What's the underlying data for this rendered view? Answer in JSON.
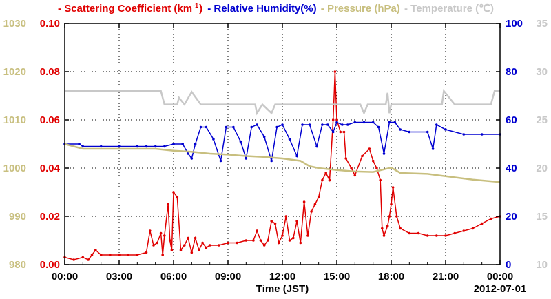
{
  "legend": {
    "scattering": {
      "prefix": "- Scattering Coefficient (km",
      "sup": "-1",
      "suffix": ")",
      "color": "#e00000"
    },
    "humidity": {
      "text": "- Relative Humidity(%)",
      "color": "#0000d0"
    },
    "pressure": {
      "text": "- Pressure (hPa)",
      "color": "#c8bf7f"
    },
    "temperature": {
      "text": "- Temperature (℃)",
      "color": "#c8c8c8"
    }
  },
  "footer": {
    "xlabel": "Time (JST)",
    "date": "2012-07-01"
  },
  "chart_data": {
    "type": "line",
    "xlabel": "Time (JST)",
    "x_ticks": [
      "00:00",
      "03:00",
      "06:00",
      "09:00",
      "12:00",
      "15:00",
      "18:00",
      "21:00",
      "00:00"
    ],
    "x_range_hours": [
      0,
      24
    ],
    "axes": {
      "pressure": {
        "side": "left-outer",
        "range": [
          980,
          1030
        ],
        "ticks": [
          "980",
          "990",
          "1000",
          "1010",
          "1020",
          "1030"
        ],
        "color": "#c8bf7f"
      },
      "scattering": {
        "side": "left-inner",
        "range": [
          0,
          0.1
        ],
        "ticks": [
          "0.00",
          "0.02",
          "0.04",
          "0.06",
          "0.08",
          "0.10"
        ],
        "color": "#e00000"
      },
      "humidity": {
        "side": "right-inner",
        "range": [
          0,
          100
        ],
        "ticks": [
          "0",
          "20",
          "40",
          "60",
          "80",
          "100"
        ],
        "color": "#0000d0"
      },
      "temperature": {
        "side": "right-outer",
        "range": [
          10,
          35
        ],
        "ticks": [
          "10",
          "15",
          "20",
          "25",
          "30",
          "35"
        ],
        "color": "#c8c8c8"
      }
    },
    "grid": true,
    "series": [
      {
        "name": "Scattering Coefficient (km-1)",
        "axis": "scattering",
        "color": "#e00000",
        "markers": true,
        "points": [
          [
            0,
            0.003
          ],
          [
            0.5,
            0.002
          ],
          [
            1,
            0.003
          ],
          [
            1.3,
            0.002
          ],
          [
            1.5,
            0.004
          ],
          [
            1.7,
            0.006
          ],
          [
            2,
            0.004
          ],
          [
            2.5,
            0.004
          ],
          [
            3,
            0.004
          ],
          [
            3.5,
            0.004
          ],
          [
            4,
            0.004
          ],
          [
            4.5,
            0.005
          ],
          [
            4.7,
            0.014
          ],
          [
            4.9,
            0.008
          ],
          [
            5.1,
            0.009
          ],
          [
            5.3,
            0.013
          ],
          [
            5.4,
            0.004
          ],
          [
            5.5,
            0.012
          ],
          [
            5.7,
            0.025
          ],
          [
            5.8,
            0.01
          ],
          [
            5.9,
            0.006
          ],
          [
            6,
            0.03
          ],
          [
            6.2,
            0.028
          ],
          [
            6.4,
            0.006
          ],
          [
            6.6,
            0.008
          ],
          [
            6.8,
            0.011
          ],
          [
            7,
            0.005
          ],
          [
            7.2,
            0.011
          ],
          [
            7.4,
            0.006
          ],
          [
            7.6,
            0.009
          ],
          [
            7.8,
            0.007
          ],
          [
            8,
            0.008
          ],
          [
            8.5,
            0.008
          ],
          [
            9,
            0.009
          ],
          [
            9.5,
            0.009
          ],
          [
            10,
            0.01
          ],
          [
            10.4,
            0.01
          ],
          [
            10.6,
            0.014
          ],
          [
            10.8,
            0.01
          ],
          [
            11,
            0.008
          ],
          [
            11.2,
            0.01
          ],
          [
            11.4,
            0.018
          ],
          [
            11.6,
            0.017
          ],
          [
            11.8,
            0.009
          ],
          [
            12,
            0.012
          ],
          [
            12.2,
            0.02
          ],
          [
            12.4,
            0.01
          ],
          [
            12.6,
            0.011
          ],
          [
            12.8,
            0.018
          ],
          [
            13,
            0.009
          ],
          [
            13.2,
            0.026
          ],
          [
            13.4,
            0.012
          ],
          [
            13.6,
            0.022
          ],
          [
            13.8,
            0.025
          ],
          [
            14,
            0.028
          ],
          [
            14.2,
            0.035
          ],
          [
            14.4,
            0.038
          ],
          [
            14.6,
            0.035
          ],
          [
            14.8,
            0.06
          ],
          [
            14.9,
            0.08
          ],
          [
            15,
            0.06
          ],
          [
            15.2,
            0.055
          ],
          [
            15.4,
            0.055
          ],
          [
            15.5,
            0.044
          ],
          [
            15.8,
            0.04
          ],
          [
            16,
            0.037
          ],
          [
            16.4,
            0.045
          ],
          [
            16.8,
            0.048
          ],
          [
            17,
            0.043
          ],
          [
            17.2,
            0.04
          ],
          [
            17.4,
            0.035
          ],
          [
            17.5,
            0.015
          ],
          [
            17.6,
            0.012
          ],
          [
            17.8,
            0.016
          ],
          [
            17.9,
            0.02
          ],
          [
            18,
            0.025
          ],
          [
            18.1,
            0.032
          ],
          [
            18.3,
            0.02
          ],
          [
            18.5,
            0.015
          ],
          [
            19,
            0.013
          ],
          [
            19.5,
            0.013
          ],
          [
            20,
            0.012
          ],
          [
            20.5,
            0.012
          ],
          [
            21,
            0.012
          ],
          [
            21.5,
            0.013
          ],
          [
            22,
            0.014
          ],
          [
            22.5,
            0.015
          ],
          [
            23,
            0.017
          ],
          [
            23.5,
            0.019
          ],
          [
            24,
            0.02
          ]
        ]
      },
      {
        "name": "Relative Humidity(%)",
        "axis": "humidity",
        "color": "#0000d0",
        "markers": true,
        "points": [
          [
            0,
            50
          ],
          [
            0.8,
            50
          ],
          [
            1,
            49
          ],
          [
            2,
            49
          ],
          [
            3,
            49
          ],
          [
            4,
            49
          ],
          [
            4.5,
            49
          ],
          [
            5,
            49
          ],
          [
            5.5,
            49
          ],
          [
            6,
            50
          ],
          [
            6.5,
            50
          ],
          [
            6.8,
            46
          ],
          [
            7,
            44
          ],
          [
            7.2,
            50
          ],
          [
            7.5,
            57
          ],
          [
            7.8,
            57
          ],
          [
            8.2,
            52
          ],
          [
            8.6,
            43
          ],
          [
            8.9,
            57
          ],
          [
            9.3,
            57
          ],
          [
            9.7,
            51
          ],
          [
            10,
            44
          ],
          [
            10.3,
            57
          ],
          [
            10.6,
            58
          ],
          [
            11,
            53
          ],
          [
            11.4,
            43
          ],
          [
            11.7,
            57
          ],
          [
            12,
            58
          ],
          [
            12.4,
            52
          ],
          [
            12.8,
            45
          ],
          [
            13.1,
            58
          ],
          [
            13.5,
            58
          ],
          [
            13.9,
            49
          ],
          [
            14.2,
            58
          ],
          [
            14.5,
            58
          ],
          [
            14.8,
            55
          ],
          [
            15,
            59
          ],
          [
            15.3,
            58
          ],
          [
            15.6,
            58
          ],
          [
            16,
            59
          ],
          [
            16.5,
            59
          ],
          [
            17,
            59
          ],
          [
            17.3,
            57
          ],
          [
            17.6,
            46
          ],
          [
            17.9,
            59
          ],
          [
            18.2,
            59
          ],
          [
            18.5,
            56
          ],
          [
            19,
            55
          ],
          [
            20,
            55
          ],
          [
            20.3,
            48
          ],
          [
            20.5,
            58
          ],
          [
            21,
            56
          ],
          [
            22,
            54
          ],
          [
            23,
            54
          ],
          [
            24,
            54
          ]
        ]
      },
      {
        "name": "Pressure (hPa)",
        "axis": "pressure",
        "color": "#c8bf7f",
        "markers": false,
        "points": [
          [
            0,
            1005
          ],
          [
            1,
            1004
          ],
          [
            5,
            1004
          ],
          [
            6,
            1003.6
          ],
          [
            7,
            1003.4
          ],
          [
            8,
            1003
          ],
          [
            9,
            1002.8
          ],
          [
            10,
            1002.5
          ],
          [
            11,
            1002.3
          ],
          [
            12,
            1002
          ],
          [
            13,
            1001.5
          ],
          [
            13.5,
            1000.4
          ],
          [
            14,
            1000
          ],
          [
            15,
            999.6
          ],
          [
            16,
            999.3
          ],
          [
            17,
            999.2
          ],
          [
            18,
            1000.1
          ],
          [
            18.5,
            999
          ],
          [
            20,
            998.8
          ],
          [
            22.5,
            997.6
          ],
          [
            24,
            997.1
          ]
        ]
      },
      {
        "name": "Temperature (℃)",
        "axis": "temperature",
        "color": "#c8c8c8",
        "markers": false,
        "points": [
          [
            0,
            28
          ],
          [
            5.3,
            28
          ],
          [
            5.5,
            26.6
          ],
          [
            6.2,
            26.6
          ],
          [
            6.3,
            27.3
          ],
          [
            6.6,
            26.6
          ],
          [
            7,
            27.9
          ],
          [
            7.5,
            26.6
          ],
          [
            10.5,
            26.6
          ],
          [
            10.6,
            25.7
          ],
          [
            10.9,
            26.6
          ],
          [
            11.4,
            25.7
          ],
          [
            11.6,
            26.6
          ],
          [
            15,
            26.6
          ],
          [
            16.3,
            26.6
          ],
          [
            16.5,
            25.7
          ],
          [
            16.7,
            26.6
          ],
          [
            17.7,
            26.6
          ],
          [
            17.8,
            27.8
          ],
          [
            17.9,
            25.7
          ],
          [
            18,
            26.6
          ],
          [
            20.8,
            26.6
          ],
          [
            20.9,
            28
          ],
          [
            21.5,
            26.6
          ],
          [
            22.6,
            26.6
          ],
          [
            23.5,
            26.6
          ],
          [
            23.7,
            28
          ],
          [
            24,
            28
          ]
        ]
      }
    ]
  }
}
